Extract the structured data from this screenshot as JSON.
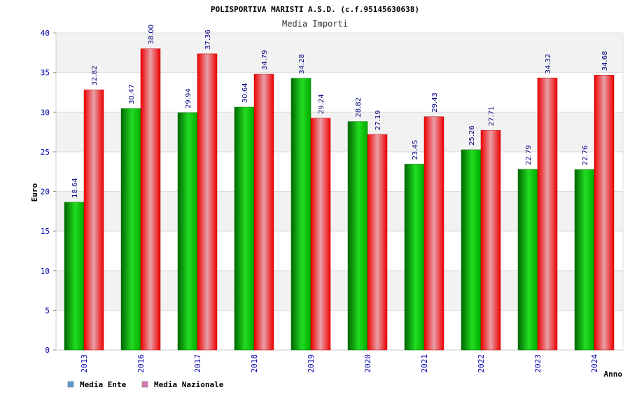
{
  "chart_data": {
    "type": "bar",
    "title": "POLISPORTIVA MARISTI A.S.D. (c.f.95145630638)",
    "subtitle": "Media Importi",
    "xlabel": "Anno",
    "ylabel": "Euro",
    "categories": [
      "2013",
      "2016",
      "2017",
      "2018",
      "2019",
      "2020",
      "2021",
      "2022",
      "2023",
      "2024"
    ],
    "ylim": [
      0,
      40
    ],
    "yticks": [
      0,
      5,
      10,
      15,
      20,
      25,
      30,
      35,
      40
    ],
    "grid": true,
    "legend_position": "bottom-left",
    "series": [
      {
        "name": "Media Ente",
        "color": "#00aa00",
        "legend_color": "#5b9bd5",
        "values": [
          18.64,
          30.47,
          29.94,
          30.64,
          34.28,
          28.82,
          23.45,
          25.26,
          22.79,
          22.76
        ],
        "labels": [
          "18.64",
          "30.47",
          "29.94",
          "30.64",
          "34.28",
          "28.82",
          "23.45",
          "25.26",
          "22.79",
          "22.76"
        ]
      },
      {
        "name": "Media Nazionale",
        "color": "#ee0000",
        "legend_color": "#d97ab0",
        "values": [
          32.82,
          38.0,
          37.36,
          34.79,
          29.24,
          27.19,
          29.43,
          27.71,
          34.32,
          34.68
        ],
        "labels": [
          "32.82",
          "38.00",
          "37.36",
          "34.79",
          "29.24",
          "27.19",
          "29.43",
          "27.71",
          "34.32",
          "34.68"
        ]
      }
    ]
  }
}
